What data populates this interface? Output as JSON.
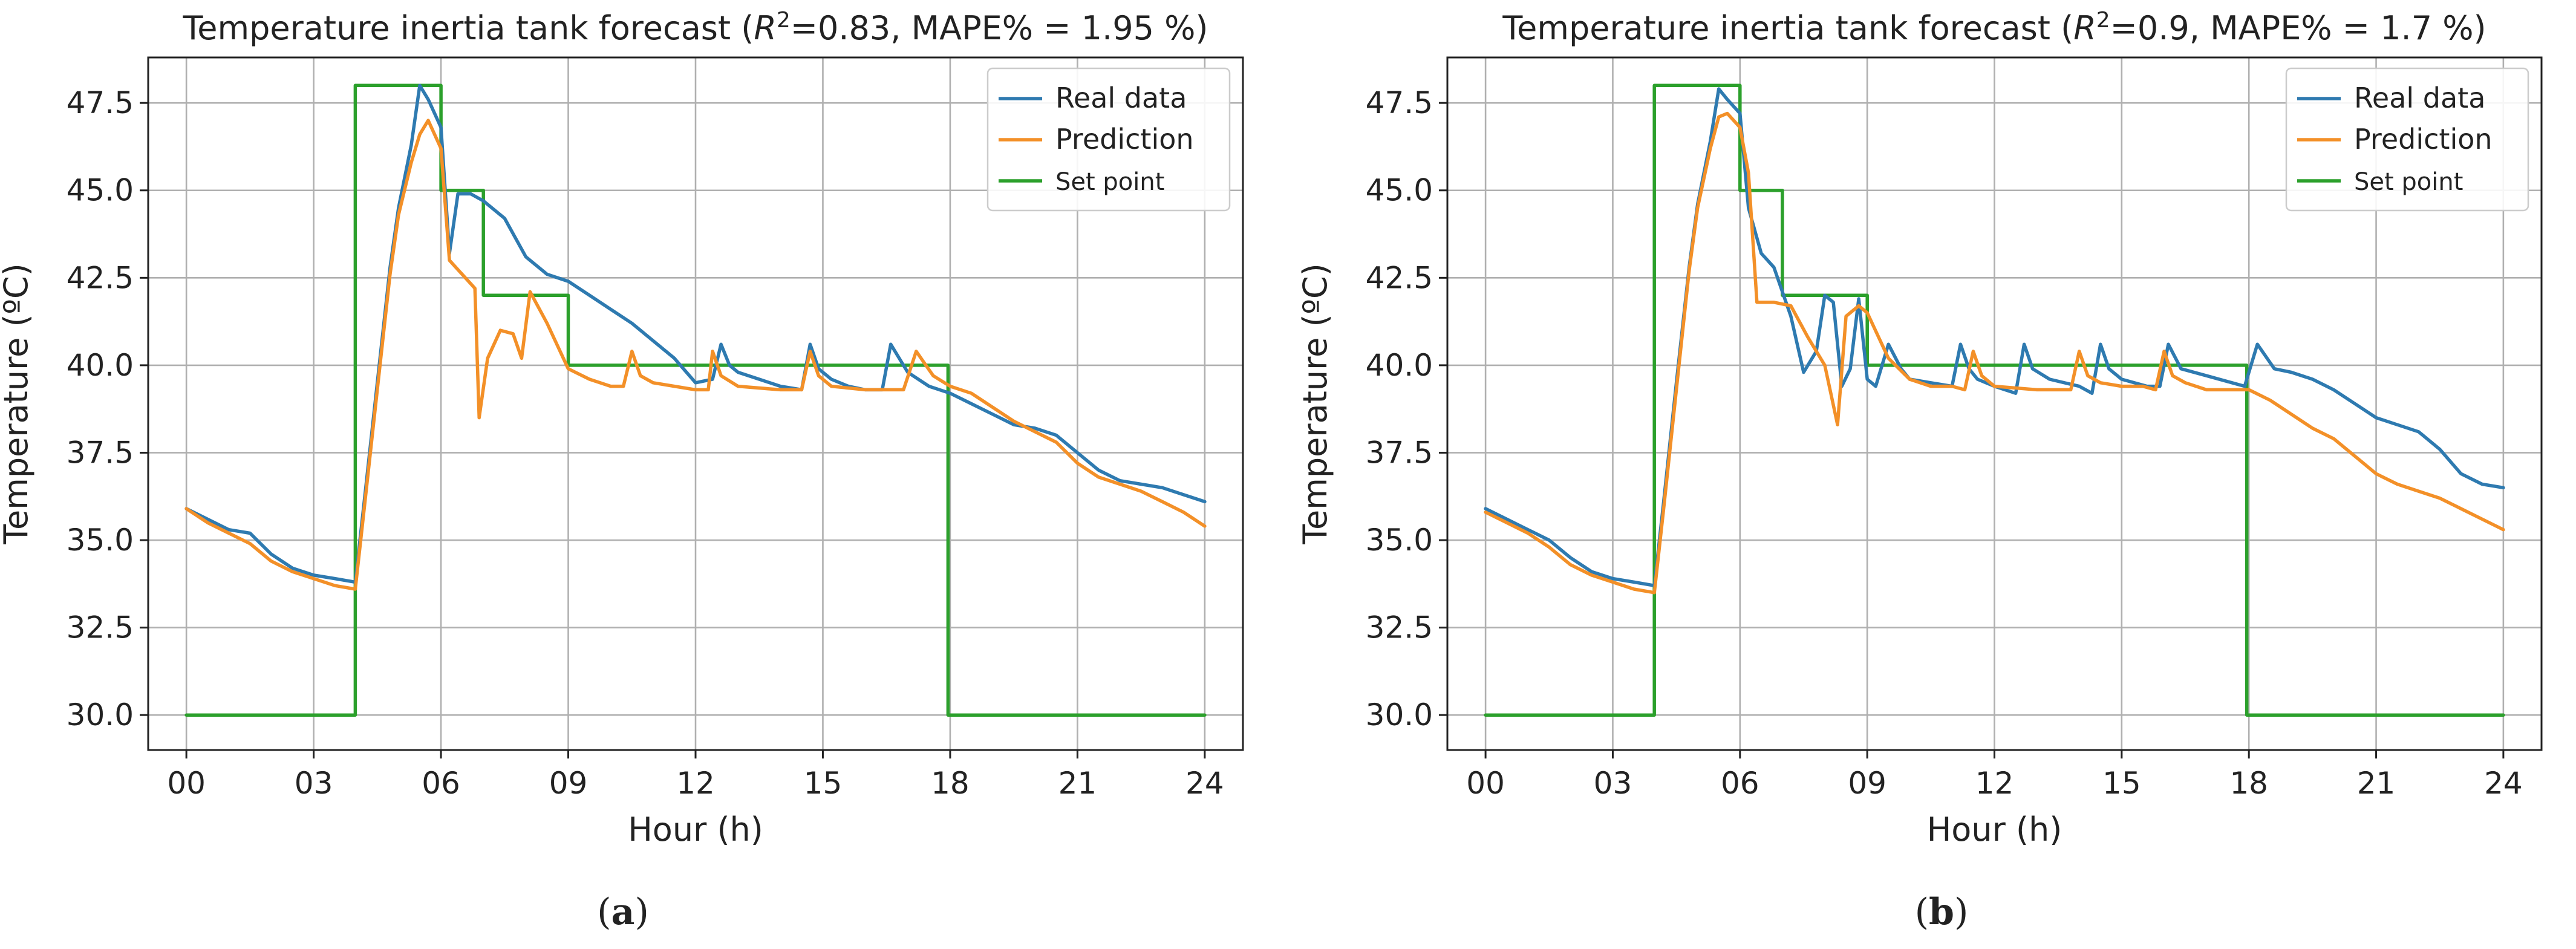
{
  "chart_data": [
    {
      "type": "line",
      "panel_label": "a",
      "title_prefix": "Temperature inertia tank forecast (",
      "title_r2_symbol": "R",
      "title_r2_sup": "2",
      "title_suffix": "=0.83, MAPE% = 1.95 %)",
      "xlabel": "Hour (h)",
      "ylabel": "Temperature (ºC)",
      "xlim": [
        -0.9,
        24.9
      ],
      "ylim": [
        29.0,
        48.8
      ],
      "xticks": [
        0,
        3,
        6,
        9,
        12,
        15,
        18,
        21,
        24
      ],
      "xtick_labels": [
        "00",
        "03",
        "06",
        "09",
        "12",
        "15",
        "18",
        "21",
        "24"
      ],
      "yticks": [
        30.0,
        32.5,
        35.0,
        37.5,
        40.0,
        42.5,
        45.0,
        47.5
      ],
      "ytick_labels": [
        "30.0",
        "32.5",
        "35.0",
        "37.5",
        "40.0",
        "42.5",
        "45.0",
        "47.5"
      ],
      "grid": true,
      "legend_position": "top-right",
      "series": [
        {
          "name": "Real data",
          "color": "#2e7ab0",
          "x": [
            0.0,
            0.5,
            1.0,
            1.5,
            2.0,
            2.5,
            3.0,
            3.5,
            3.98,
            4.2,
            4.5,
            4.8,
            5.0,
            5.3,
            5.5,
            5.7,
            6.0,
            6.2,
            6.4,
            6.7,
            7.0,
            7.5,
            8.0,
            8.5,
            9.0,
            9.5,
            10.0,
            10.5,
            11.0,
            11.5,
            12.0,
            12.4,
            12.6,
            12.8,
            13.0,
            13.5,
            14.0,
            14.5,
            14.7,
            14.9,
            15.2,
            15.6,
            16.0,
            16.4,
            16.6,
            17.0,
            17.5,
            18.0,
            18.5,
            19.0,
            19.5,
            20.0,
            20.5,
            21.0,
            21.5,
            22.0,
            22.5,
            23.0,
            23.5,
            24.0
          ],
          "values": [
            35.9,
            35.6,
            35.3,
            35.2,
            34.6,
            34.2,
            34.0,
            33.9,
            33.8,
            36.2,
            39.5,
            42.8,
            44.5,
            46.3,
            48.0,
            47.6,
            46.8,
            43.2,
            44.9,
            44.9,
            44.7,
            44.2,
            43.1,
            42.6,
            42.4,
            42.0,
            41.6,
            41.2,
            40.7,
            40.2,
            39.5,
            39.6,
            40.6,
            40.0,
            39.8,
            39.6,
            39.4,
            39.3,
            40.6,
            39.9,
            39.6,
            39.4,
            39.3,
            39.3,
            40.6,
            39.8,
            39.4,
            39.2,
            38.9,
            38.6,
            38.3,
            38.2,
            38.0,
            37.5,
            37.0,
            36.7,
            36.6,
            36.5,
            36.3,
            36.1
          ]
        },
        {
          "name": "Prediction",
          "color": "#f39028",
          "x": [
            0.0,
            0.5,
            1.0,
            1.5,
            2.0,
            2.5,
            3.0,
            3.5,
            3.98,
            4.2,
            4.5,
            4.8,
            5.0,
            5.3,
            5.5,
            5.7,
            6.0,
            6.2,
            6.5,
            6.8,
            6.9,
            7.1,
            7.4,
            7.7,
            7.9,
            8.1,
            8.5,
            9.0,
            9.5,
            10.0,
            10.3,
            10.5,
            10.7,
            11.0,
            11.5,
            12.0,
            12.3,
            12.4,
            12.6,
            13.0,
            14.0,
            14.5,
            14.7,
            14.9,
            15.2,
            16.0,
            16.5,
            16.9,
            17.2,
            17.6,
            18.0,
            18.5,
            19.0,
            19.5,
            20.0,
            20.5,
            21.0,
            21.5,
            22.0,
            22.5,
            23.0,
            23.5,
            24.0
          ],
          "values": [
            35.9,
            35.5,
            35.2,
            34.9,
            34.4,
            34.1,
            33.9,
            33.7,
            33.6,
            36.0,
            39.3,
            42.6,
            44.3,
            45.8,
            46.6,
            47.0,
            46.2,
            43.0,
            42.6,
            42.2,
            38.5,
            40.2,
            41.0,
            40.9,
            40.2,
            42.1,
            41.2,
            39.9,
            39.6,
            39.4,
            39.4,
            40.4,
            39.7,
            39.5,
            39.4,
            39.3,
            39.3,
            40.4,
            39.7,
            39.4,
            39.3,
            39.3,
            40.4,
            39.7,
            39.4,
            39.3,
            39.3,
            39.3,
            40.4,
            39.7,
            39.4,
            39.2,
            38.8,
            38.4,
            38.1,
            37.8,
            37.2,
            36.8,
            36.6,
            36.4,
            36.1,
            35.8,
            35.4
          ]
        },
        {
          "name": "Set point",
          "color": "#2ca02c",
          "x": [
            0.0,
            3.98,
            3.98,
            6.0,
            6.0,
            7.0,
            7.0,
            9.0,
            9.0,
            17.95,
            17.95,
            24.0
          ],
          "values": [
            30.0,
            30.0,
            48.0,
            48.0,
            45.0,
            45.0,
            42.0,
            42.0,
            40.0,
            40.0,
            30.0,
            30.0
          ]
        }
      ]
    },
    {
      "type": "line",
      "panel_label": "b",
      "title_prefix": "Temperature inertia tank forecast (",
      "title_r2_symbol": "R",
      "title_r2_sup": "2",
      "title_suffix": "=0.9, MAPE% = 1.7 %)",
      "xlabel": "Hour (h)",
      "ylabel": "Temperature (ºC)",
      "xlim": [
        -0.9,
        24.9
      ],
      "ylim": [
        29.0,
        48.8
      ],
      "xticks": [
        0,
        3,
        6,
        9,
        12,
        15,
        18,
        21,
        24
      ],
      "xtick_labels": [
        "00",
        "03",
        "06",
        "09",
        "12",
        "15",
        "18",
        "21",
        "24"
      ],
      "yticks": [
        30.0,
        32.5,
        35.0,
        37.5,
        40.0,
        42.5,
        45.0,
        47.5
      ],
      "ytick_labels": [
        "30.0",
        "32.5",
        "35.0",
        "37.5",
        "40.0",
        "42.5",
        "45.0",
        "47.5"
      ],
      "grid": true,
      "legend_position": "top-right",
      "series": [
        {
          "name": "Real data",
          "color": "#2e7ab0",
          "x": [
            0.0,
            0.5,
            1.0,
            1.5,
            2.0,
            2.5,
            3.0,
            3.5,
            3.98,
            4.2,
            4.5,
            4.8,
            5.0,
            5.3,
            5.5,
            5.7,
            6.0,
            6.2,
            6.5,
            6.8,
            7.2,
            7.5,
            7.8,
            8.0,
            8.2,
            8.4,
            8.6,
            8.8,
            9.0,
            9.2,
            9.5,
            9.8,
            10.0,
            10.5,
            11.0,
            11.2,
            11.4,
            11.6,
            12.0,
            12.5,
            12.7,
            12.9,
            13.3,
            14.0,
            14.3,
            14.5,
            14.7,
            15.0,
            15.6,
            15.9,
            16.1,
            16.4,
            17.0,
            17.6,
            17.9,
            18.2,
            18.6,
            19.0,
            19.5,
            20.0,
            20.5,
            21.0,
            21.5,
            22.0,
            22.5,
            23.0,
            23.5,
            24.0
          ],
          "values": [
            35.9,
            35.6,
            35.3,
            35.0,
            34.5,
            34.1,
            33.9,
            33.8,
            33.7,
            36.1,
            39.5,
            42.8,
            44.6,
            46.4,
            47.9,
            47.6,
            47.2,
            44.5,
            43.2,
            42.8,
            41.4,
            39.8,
            40.4,
            42.0,
            41.8,
            39.4,
            39.9,
            41.9,
            39.6,
            39.4,
            40.6,
            39.9,
            39.6,
            39.5,
            39.4,
            40.6,
            39.9,
            39.6,
            39.4,
            39.2,
            40.6,
            39.9,
            39.6,
            39.4,
            39.2,
            40.6,
            39.9,
            39.6,
            39.4,
            39.4,
            40.6,
            39.9,
            39.7,
            39.5,
            39.4,
            40.6,
            39.9,
            39.8,
            39.6,
            39.3,
            38.9,
            38.5,
            38.3,
            38.1,
            37.6,
            36.9,
            36.6,
            36.5
          ]
        },
        {
          "name": "Prediction",
          "color": "#f39028",
          "x": [
            0.0,
            0.5,
            1.0,
            1.5,
            2.0,
            2.5,
            3.0,
            3.5,
            3.98,
            4.2,
            4.5,
            4.8,
            5.0,
            5.3,
            5.5,
            5.7,
            6.0,
            6.2,
            6.4,
            6.8,
            7.2,
            7.6,
            8.0,
            8.3,
            8.5,
            8.8,
            9.0,
            9.5,
            10.0,
            10.5,
            11.0,
            11.3,
            11.5,
            11.7,
            12.0,
            13.0,
            13.5,
            13.8,
            14.0,
            14.2,
            14.5,
            15.0,
            15.5,
            15.8,
            16.0,
            16.2,
            16.5,
            17.0,
            17.5,
            18.0,
            18.5,
            19.0,
            19.5,
            20.0,
            20.5,
            21.0,
            21.5,
            22.0,
            22.5,
            23.0,
            23.5,
            24.0
          ],
          "values": [
            35.8,
            35.5,
            35.2,
            34.8,
            34.3,
            34.0,
            33.8,
            33.6,
            33.5,
            35.9,
            39.3,
            42.7,
            44.5,
            46.2,
            47.1,
            47.2,
            46.8,
            45.5,
            41.8,
            41.8,
            41.7,
            40.8,
            40.0,
            38.3,
            41.4,
            41.7,
            41.5,
            40.2,
            39.6,
            39.4,
            39.4,
            39.3,
            40.4,
            39.7,
            39.4,
            39.3,
            39.3,
            39.3,
            40.4,
            39.7,
            39.5,
            39.4,
            39.4,
            39.3,
            40.4,
            39.7,
            39.5,
            39.3,
            39.3,
            39.3,
            39.0,
            38.6,
            38.2,
            37.9,
            37.4,
            36.9,
            36.6,
            36.4,
            36.2,
            35.9,
            35.6,
            35.3
          ]
        },
        {
          "name": "Set point",
          "color": "#2ca02c",
          "x": [
            0.0,
            3.98,
            3.98,
            6.0,
            6.0,
            7.0,
            7.0,
            9.0,
            9.0,
            17.95,
            17.95,
            24.0
          ],
          "values": [
            30.0,
            30.0,
            48.0,
            48.0,
            45.0,
            45.0,
            42.0,
            42.0,
            40.0,
            40.0,
            30.0,
            30.0
          ]
        }
      ]
    }
  ]
}
